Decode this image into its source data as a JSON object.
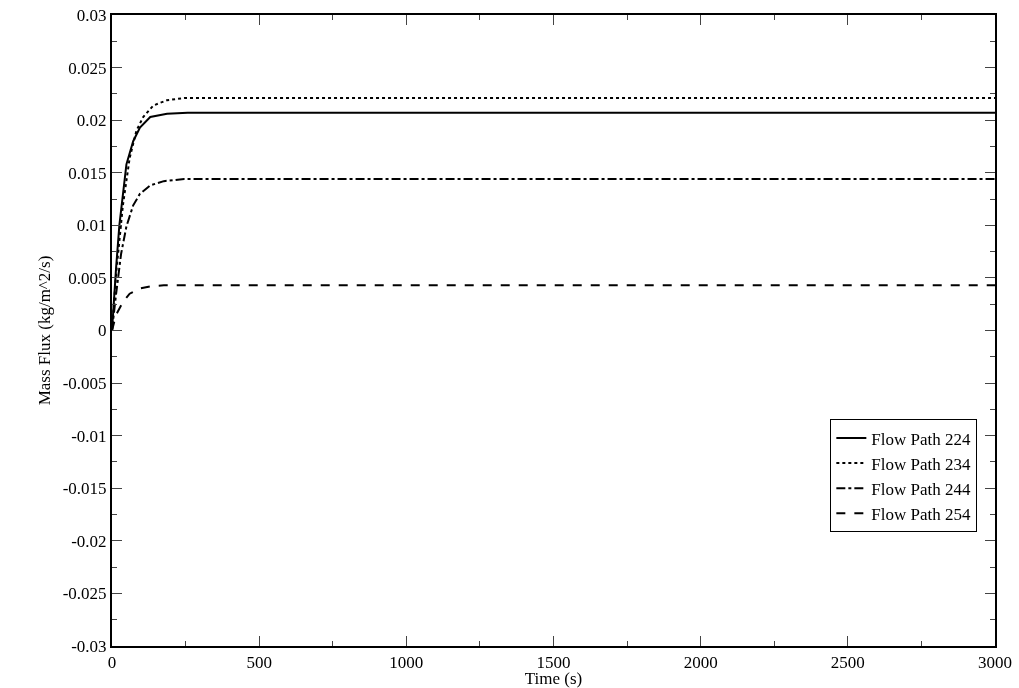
{
  "chart_data": {
    "type": "line",
    "xlabel": "Time (s)",
    "ylabel": "Mass Flux (kg/m^2/s)",
    "xlim": [
      0,
      3000
    ],
    "xticks": [
      0,
      500,
      1000,
      1500,
      2000,
      2500,
      3000
    ],
    "ylim": [
      -0.03,
      0.03
    ],
    "yticks": [
      -0.03,
      -0.025,
      -0.02,
      -0.015,
      -0.01,
      -0.005,
      0,
      0.005,
      0.01,
      0.015,
      0.02,
      0.025,
      0.03
    ],
    "grid": false,
    "legend": "bottom right",
    "marker": "none",
    "series": [
      {
        "name": "Flow Path 224",
        "color": "#000000",
        "line_style": "solid",
        "x": [
          0,
          14,
          25,
          49,
          72,
          95,
          130,
          187,
          257,
          500,
          1000,
          1500,
          2000,
          2500,
          3000
        ],
        "values": [
          0,
          0.006,
          0.01,
          0.0158,
          0.018,
          0.0193,
          0.0203,
          0.0206,
          0.0207,
          0.0207,
          0.0207,
          0.0207,
          0.0207,
          0.0207,
          0.0207
        ]
      },
      {
        "name": "Flow Path 234",
        "color": "#000000",
        "line_style": "dotted",
        "x": [
          0,
          14,
          37,
          60,
          83,
          106,
          141,
          187,
          245,
          500,
          1000,
          1500,
          2000,
          2500,
          3000
        ],
        "values": [
          0,
          0.0054,
          0.0119,
          0.0164,
          0.019,
          0.0203,
          0.0214,
          0.0219,
          0.0221,
          0.0221,
          0.0221,
          0.0221,
          0.0221,
          0.0221,
          0.0221
        ]
      },
      {
        "name": "Flow Path 244",
        "color": "#000000",
        "line_style": "dashdot",
        "x": [
          0,
          14,
          31,
          49,
          72,
          95,
          130,
          176,
          245,
          500,
          1000,
          1500,
          2000,
          2500,
          3000
        ],
        "values": [
          0,
          0.0035,
          0.0073,
          0.0099,
          0.0119,
          0.013,
          0.0138,
          0.0142,
          0.0144,
          0.0144,
          0.0144,
          0.0144,
          0.0144,
          0.0144,
          0.0144
        ]
      },
      {
        "name": "Flow Path 254",
        "color": "#000000",
        "line_style": "dashed",
        "x": [
          0,
          14,
          37,
          60,
          95,
          130,
          176,
          500,
          1000,
          1500,
          2000,
          2500,
          3000
        ],
        "values": [
          0,
          0.0015,
          0.0027,
          0.0035,
          0.004,
          0.0042,
          0.0043,
          0.0043,
          0.0043,
          0.0043,
          0.0043,
          0.0043,
          0.0043
        ]
      }
    ]
  }
}
